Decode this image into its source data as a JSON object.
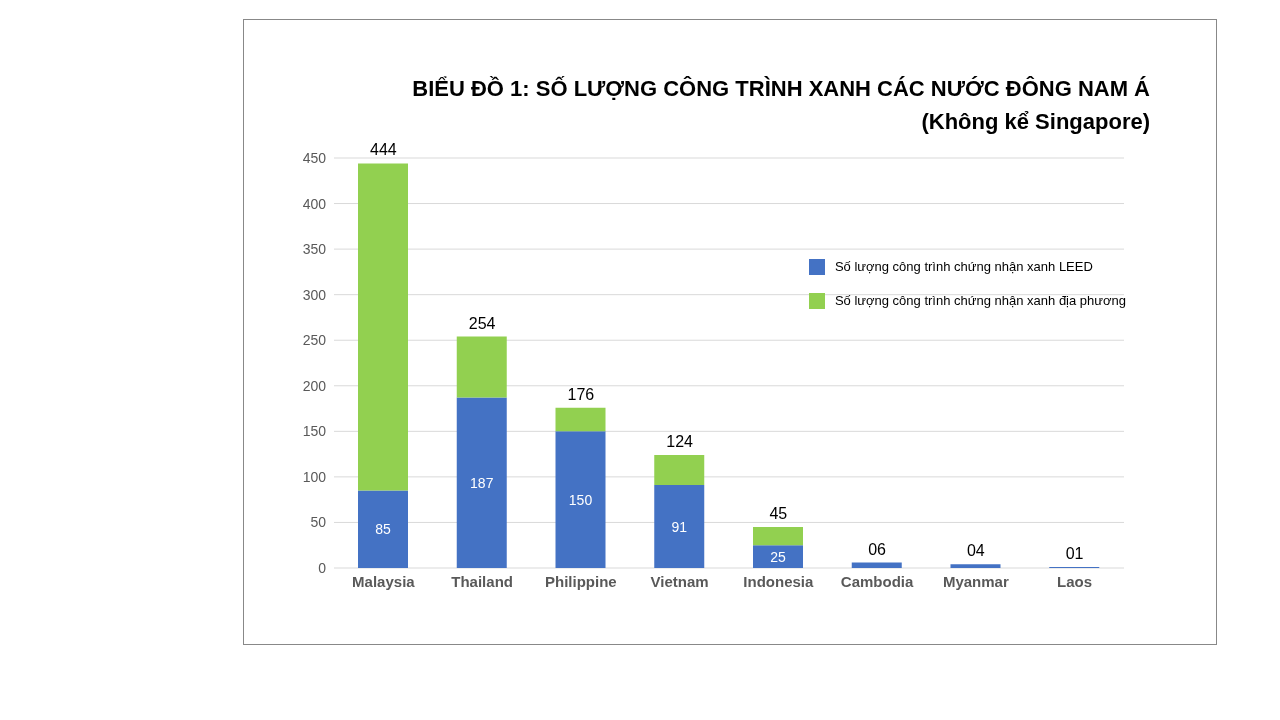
{
  "chart_data": {
    "type": "bar",
    "title": "BIỂU ĐỒ 1:  SỐ LƯỢNG CÔNG TRÌNH XANH CÁC NƯỚC ĐÔNG NAM Á",
    "subtitle": "(Không kể Singapore)",
    "categories": [
      "Malaysia",
      "Thailand",
      "Philippine",
      "Vietnam",
      "Indonesia",
      "Cambodia",
      "Myanmar",
      "Laos"
    ],
    "series": [
      {
        "name": "Số lượng công trình chứng nhận xanh LEED",
        "color": "#4472c4",
        "values": [
          85,
          187,
          150,
          91,
          25,
          6,
          4,
          1
        ],
        "value_labels": [
          "85",
          "187",
          "150",
          "91",
          "25",
          null,
          null,
          null
        ]
      },
      {
        "name": "Số lượng công trình chứng nhận xanh địa phương",
        "color": "#92d050",
        "values": [
          359,
          67,
          26,
          33,
          20,
          null,
          null,
          null
        ]
      }
    ],
    "stacked": true,
    "totals": [
      "444",
      "254",
      "176",
      "124",
      "45",
      "06",
      "04",
      "01"
    ],
    "ylim": [
      0,
      450
    ],
    "yticks": [
      0,
      50,
      100,
      150,
      200,
      250,
      300,
      350,
      400,
      450
    ],
    "grid": "y",
    "legend": "top right"
  }
}
